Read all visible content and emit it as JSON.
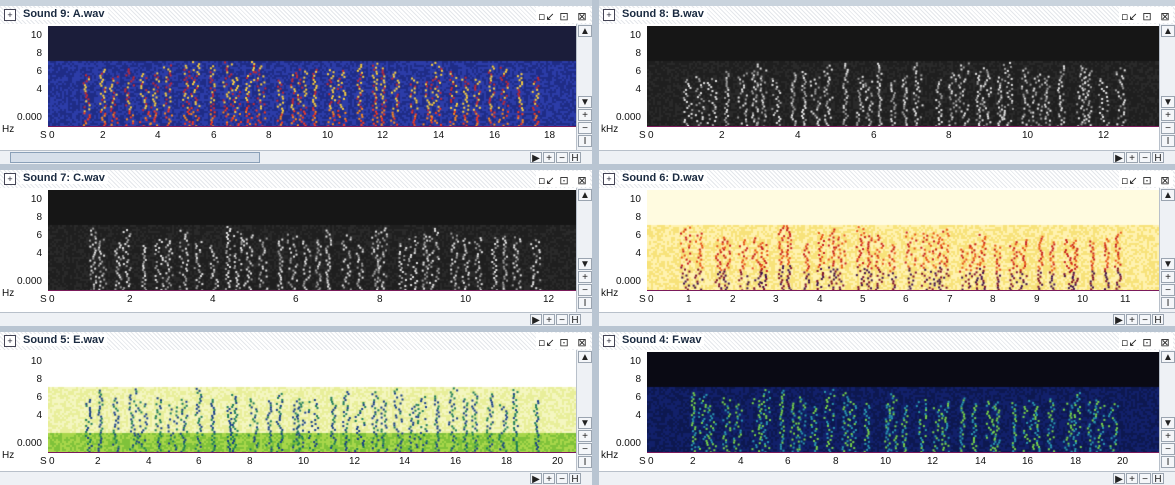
{
  "panes": [
    {
      "title": "Sound 9: A.wav",
      "scheme": "rainbow",
      "xmax": 19,
      "xlabels": [
        "0",
        "2",
        "4",
        "6",
        "8",
        "10",
        "12",
        "14",
        "16",
        "18"
      ],
      "xvals": [
        0,
        2,
        4,
        6,
        8,
        10,
        12,
        14,
        16,
        18
      ],
      "ylabels": [
        "10",
        "8",
        "6",
        "4",
        "0.000"
      ],
      "unit": "Hz",
      "s_label": "S"
    },
    {
      "title": "Sound 8: B.wav",
      "scheme": "gray",
      "xmax": 13.5,
      "xlabels": [
        "0",
        "2",
        "4",
        "6",
        "8",
        "10",
        "12"
      ],
      "xvals": [
        0,
        2,
        4,
        6,
        8,
        10,
        12
      ],
      "ylabels": [
        "10",
        "8",
        "6",
        "4",
        "0.000"
      ],
      "unit": "kHz",
      "s_label": "S"
    },
    {
      "title": "Sound 7: C.wav",
      "scheme": "gray",
      "xmax": 12.7,
      "xlabels": [
        "0",
        "2",
        "4",
        "6",
        "8",
        "10",
        "12"
      ],
      "xvals": [
        0,
        2,
        4,
        6,
        8,
        10,
        12
      ],
      "ylabels": [
        "10",
        "8",
        "6",
        "4",
        "0.000"
      ],
      "unit": "Hz",
      "s_label": "S"
    },
    {
      "title": "Sound 6: D.wav",
      "scheme": "heat",
      "xmax": 11.8,
      "xlabels": [
        "0",
        "1",
        "2",
        "3",
        "4",
        "5",
        "6",
        "7",
        "8",
        "9",
        "10",
        "11"
      ],
      "xvals": [
        0,
        1,
        2,
        3,
        4,
        5,
        6,
        7,
        8,
        9,
        10,
        11
      ],
      "ylabels": [
        "10",
        "8",
        "6",
        "4",
        "0.000"
      ],
      "unit": "kHz",
      "s_label": "S"
    },
    {
      "title": "Sound 5: E.wav",
      "scheme": "green",
      "xmax": 20.8,
      "xlabels": [
        "0",
        "2",
        "4",
        "6",
        "8",
        "10",
        "12",
        "14",
        "16",
        "18",
        "20"
      ],
      "xvals": [
        0,
        2,
        4,
        6,
        8,
        10,
        12,
        14,
        16,
        18,
        20
      ],
      "ylabels": [
        "10",
        "8",
        "6",
        "4",
        "0.000"
      ],
      "unit": "Hz",
      "s_label": "S"
    },
    {
      "title": "Sound 4: F.wav",
      "scheme": "blue",
      "xmax": 21.6,
      "xlabels": [
        "0",
        "2",
        "4",
        "6",
        "8",
        "10",
        "12",
        "14",
        "16",
        "18",
        "20"
      ],
      "xvals": [
        0,
        2,
        4,
        6,
        8,
        10,
        12,
        14,
        16,
        18,
        20
      ],
      "ylabels": [
        "10",
        "8",
        "6",
        "4",
        "0.000"
      ],
      "unit": "kHz",
      "s_label": "S"
    }
  ],
  "window_buttons": {
    "restore": "▫↙",
    "maximize": "⊡",
    "close": "⊠"
  },
  "scroll_buttons": {
    "up": "▲",
    "down": "▼",
    "plus": "+",
    "minus": "−",
    "fit": "I",
    "left": "◀",
    "right": "▶",
    "hfit": "H"
  }
}
